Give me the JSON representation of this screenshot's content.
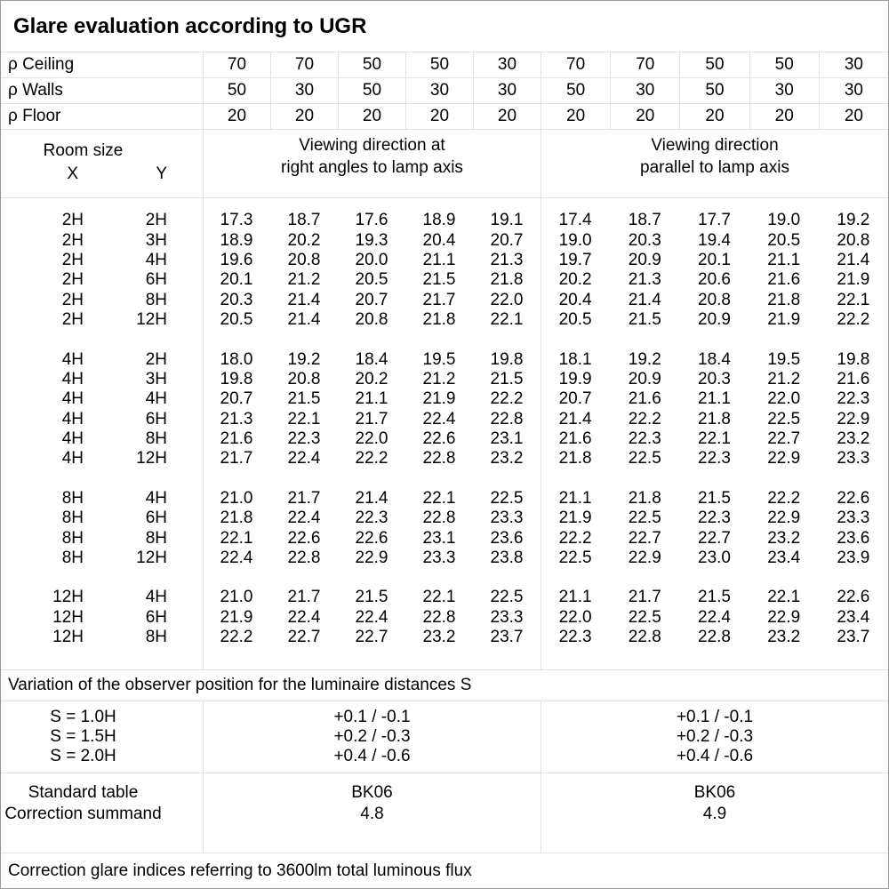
{
  "title": "Glare evaluation according to UGR",
  "reflectances": [
    {
      "label": "ρ Ceiling",
      "values": [
        "70",
        "70",
        "50",
        "50",
        "30",
        "70",
        "70",
        "50",
        "50",
        "30"
      ]
    },
    {
      "label": "ρ Walls",
      "values": [
        "50",
        "30",
        "50",
        "30",
        "30",
        "50",
        "30",
        "50",
        "30",
        "30"
      ]
    },
    {
      "label": "ρ Floor",
      "values": [
        "20",
        "20",
        "20",
        "20",
        "20",
        "20",
        "20",
        "20",
        "20",
        "20"
      ]
    }
  ],
  "header": {
    "room_size": "Room size",
    "x": "X",
    "y": "Y",
    "right_angles_group": "Viewing direction at\nright angles to lamp axis",
    "parallel_group": "Viewing direction\nparallel to lamp axis"
  },
  "ugr_blocks": [
    {
      "rows": [
        {
          "x": "2H",
          "y": "2H",
          "right_angles": [
            "17.3",
            "18.7",
            "17.6",
            "18.9",
            "19.1"
          ],
          "parallel": [
            "17.4",
            "18.7",
            "17.7",
            "19.0",
            "19.2"
          ]
        },
        {
          "x": "2H",
          "y": "3H",
          "right_angles": [
            "18.9",
            "20.2",
            "19.3",
            "20.4",
            "20.7"
          ],
          "parallel": [
            "19.0",
            "20.3",
            "19.4",
            "20.5",
            "20.8"
          ]
        },
        {
          "x": "2H",
          "y": "4H",
          "right_angles": [
            "19.6",
            "20.8",
            "20.0",
            "21.1",
            "21.3"
          ],
          "parallel": [
            "19.7",
            "20.9",
            "20.1",
            "21.1",
            "21.4"
          ]
        },
        {
          "x": "2H",
          "y": "6H",
          "right_angles": [
            "20.1",
            "21.2",
            "20.5",
            "21.5",
            "21.8"
          ],
          "parallel": [
            "20.2",
            "21.3",
            "20.6",
            "21.6",
            "21.9"
          ]
        },
        {
          "x": "2H",
          "y": "8H",
          "right_angles": [
            "20.3",
            "21.4",
            "20.7",
            "21.7",
            "22.0"
          ],
          "parallel": [
            "20.4",
            "21.4",
            "20.8",
            "21.8",
            "22.1"
          ]
        },
        {
          "x": "2H",
          "y": "12H",
          "right_angles": [
            "20.5",
            "21.4",
            "20.8",
            "21.8",
            "22.1"
          ],
          "parallel": [
            "20.5",
            "21.5",
            "20.9",
            "21.9",
            "22.2"
          ]
        }
      ]
    },
    {
      "rows": [
        {
          "x": "4H",
          "y": "2H",
          "right_angles": [
            "18.0",
            "19.2",
            "18.4",
            "19.5",
            "19.8"
          ],
          "parallel": [
            "18.1",
            "19.2",
            "18.4",
            "19.5",
            "19.8"
          ]
        },
        {
          "x": "4H",
          "y": "3H",
          "right_angles": [
            "19.8",
            "20.8",
            "20.2",
            "21.2",
            "21.5"
          ],
          "parallel": [
            "19.9",
            "20.9",
            "20.3",
            "21.2",
            "21.6"
          ]
        },
        {
          "x": "4H",
          "y": "4H",
          "right_angles": [
            "20.7",
            "21.5",
            "21.1",
            "21.9",
            "22.2"
          ],
          "parallel": [
            "20.7",
            "21.6",
            "21.1",
            "22.0",
            "22.3"
          ]
        },
        {
          "x": "4H",
          "y": "6H",
          "right_angles": [
            "21.3",
            "22.1",
            "21.7",
            "22.4",
            "22.8"
          ],
          "parallel": [
            "21.4",
            "22.2",
            "21.8",
            "22.5",
            "22.9"
          ]
        },
        {
          "x": "4H",
          "y": "8H",
          "right_angles": [
            "21.6",
            "22.3",
            "22.0",
            "22.6",
            "23.1"
          ],
          "parallel": [
            "21.6",
            "22.3",
            "22.1",
            "22.7",
            "23.2"
          ]
        },
        {
          "x": "4H",
          "y": "12H",
          "right_angles": [
            "21.7",
            "22.4",
            "22.2",
            "22.8",
            "23.2"
          ],
          "parallel": [
            "21.8",
            "22.5",
            "22.3",
            "22.9",
            "23.3"
          ]
        }
      ]
    },
    {
      "rows": [
        {
          "x": "8H",
          "y": "4H",
          "right_angles": [
            "21.0",
            "21.7",
            "21.4",
            "22.1",
            "22.5"
          ],
          "parallel": [
            "21.1",
            "21.8",
            "21.5",
            "22.2",
            "22.6"
          ]
        },
        {
          "x": "8H",
          "y": "6H",
          "right_angles": [
            "21.8",
            "22.4",
            "22.3",
            "22.8",
            "23.3"
          ],
          "parallel": [
            "21.9",
            "22.5",
            "22.3",
            "22.9",
            "23.3"
          ]
        },
        {
          "x": "8H",
          "y": "8H",
          "right_angles": [
            "22.1",
            "22.6",
            "22.6",
            "23.1",
            "23.6"
          ],
          "parallel": [
            "22.2",
            "22.7",
            "22.7",
            "23.2",
            "23.6"
          ]
        },
        {
          "x": "8H",
          "y": "12H",
          "right_angles": [
            "22.4",
            "22.8",
            "22.9",
            "23.3",
            "23.8"
          ],
          "parallel": [
            "22.5",
            "22.9",
            "23.0",
            "23.4",
            "23.9"
          ]
        }
      ]
    },
    {
      "rows": [
        {
          "x": "12H",
          "y": "4H",
          "right_angles": [
            "21.0",
            "21.7",
            "21.5",
            "22.1",
            "22.5"
          ],
          "parallel": [
            "21.1",
            "21.7",
            "21.5",
            "22.1",
            "22.6"
          ]
        },
        {
          "x": "12H",
          "y": "6H",
          "right_angles": [
            "21.9",
            "22.4",
            "22.4",
            "22.8",
            "23.3"
          ],
          "parallel": [
            "22.0",
            "22.5",
            "22.4",
            "22.9",
            "23.4"
          ]
        },
        {
          "x": "12H",
          "y": "8H",
          "right_angles": [
            "22.2",
            "22.7",
            "22.7",
            "23.2",
            "23.7"
          ],
          "parallel": [
            "22.3",
            "22.8",
            "22.8",
            "23.2",
            "23.7"
          ]
        }
      ]
    }
  ],
  "variation_note": "Variation of the observer position for the luminaire distances S",
  "spacing_rows": [
    {
      "label": "S = 1.0H",
      "right_angles": "+0.1 / -0.1",
      "parallel": "+0.1 / -0.1"
    },
    {
      "label": "S = 1.5H",
      "right_angles": "+0.2 / -0.3",
      "parallel": "+0.2 / -0.3"
    },
    {
      "label": "S = 2.0H",
      "right_angles": "+0.4 / -0.6",
      "parallel": "+0.4 / -0.6"
    }
  ],
  "standard": {
    "labels": [
      "Standard table",
      "Correction summand"
    ],
    "right_angles": [
      "BK06",
      "4.8"
    ],
    "parallel": [
      "BK06",
      "4.9"
    ]
  },
  "footer_note": "Correction glare indices referring to 3600lm total luminous flux"
}
